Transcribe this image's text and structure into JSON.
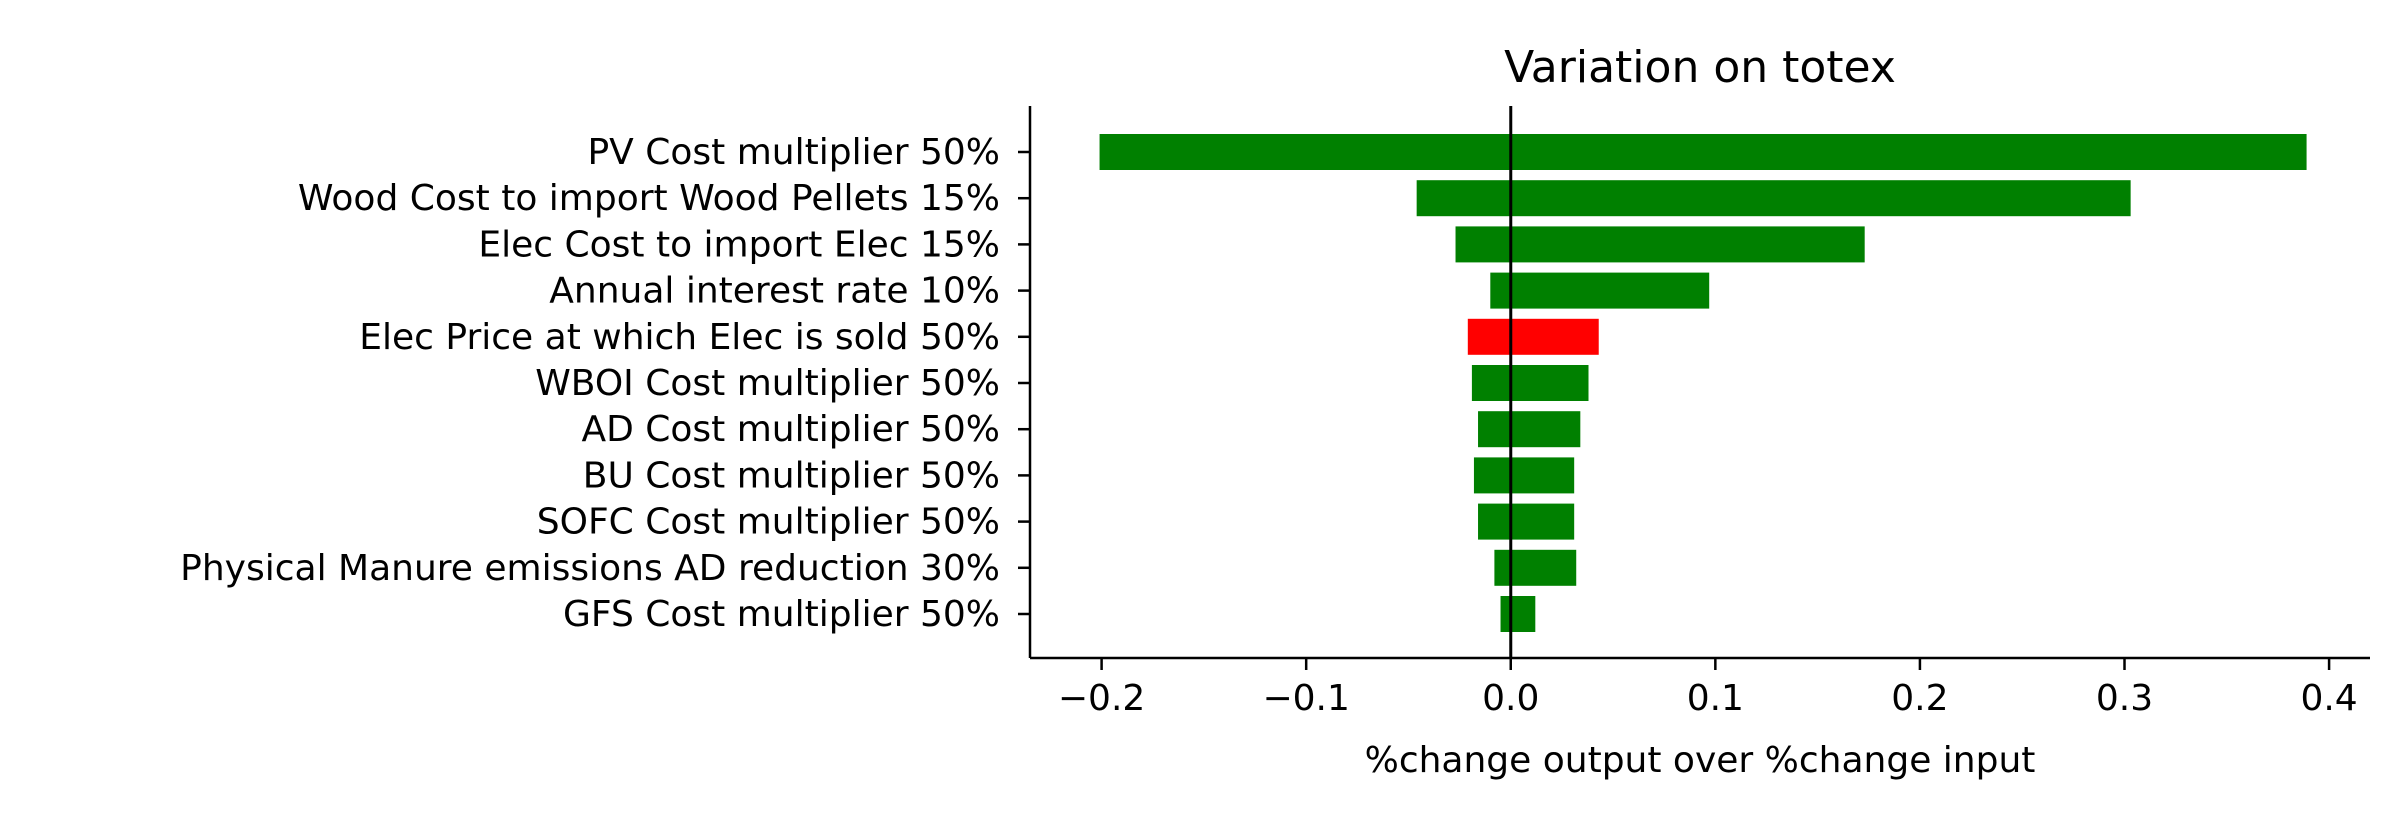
{
  "chart_data": {
    "type": "bar",
    "orientation": "horizontal",
    "title": "Variation on totex",
    "xlabel": "%change output over %change input",
    "ylabel": "",
    "xlim": [
      -0.235,
      0.42
    ],
    "xticks": [
      -0.2,
      -0.1,
      0.0,
      0.1,
      0.2,
      0.3,
      0.4
    ],
    "xtick_labels": [
      "−0.2",
      "−0.1",
      "0.0",
      "0.1",
      "0.2",
      "0.3",
      "0.4"
    ],
    "grid": false,
    "zero_line": true,
    "categories": [
      "PV Cost multiplier 50%",
      "Wood Cost to import Wood Pellets 15%",
      "Elec Cost to import Elec  15%",
      "Annual interest rate 10%",
      "Elec Price at which Elec is sold 50%",
      "WBOI Cost multiplier 50%",
      "AD Cost multiplier 50%",
      "BU Cost multiplier 50%",
      "SOFC Cost multiplier 50%",
      "Physical Manure emissions AD reduction 30%",
      "GFS Cost multiplier 50%"
    ],
    "low": [
      -0.201,
      -0.046,
      -0.027,
      -0.01,
      -0.021,
      -0.019,
      -0.016,
      -0.018,
      -0.016,
      -0.008,
      -0.005
    ],
    "high": [
      0.389,
      0.303,
      0.173,
      0.097,
      0.043,
      0.038,
      0.034,
      0.031,
      0.031,
      0.032,
      0.012
    ],
    "colors": [
      "#008000",
      "#008000",
      "#008000",
      "#008000",
      "#ff0000",
      "#008000",
      "#008000",
      "#008000",
      "#008000",
      "#008000",
      "#008000"
    ]
  }
}
